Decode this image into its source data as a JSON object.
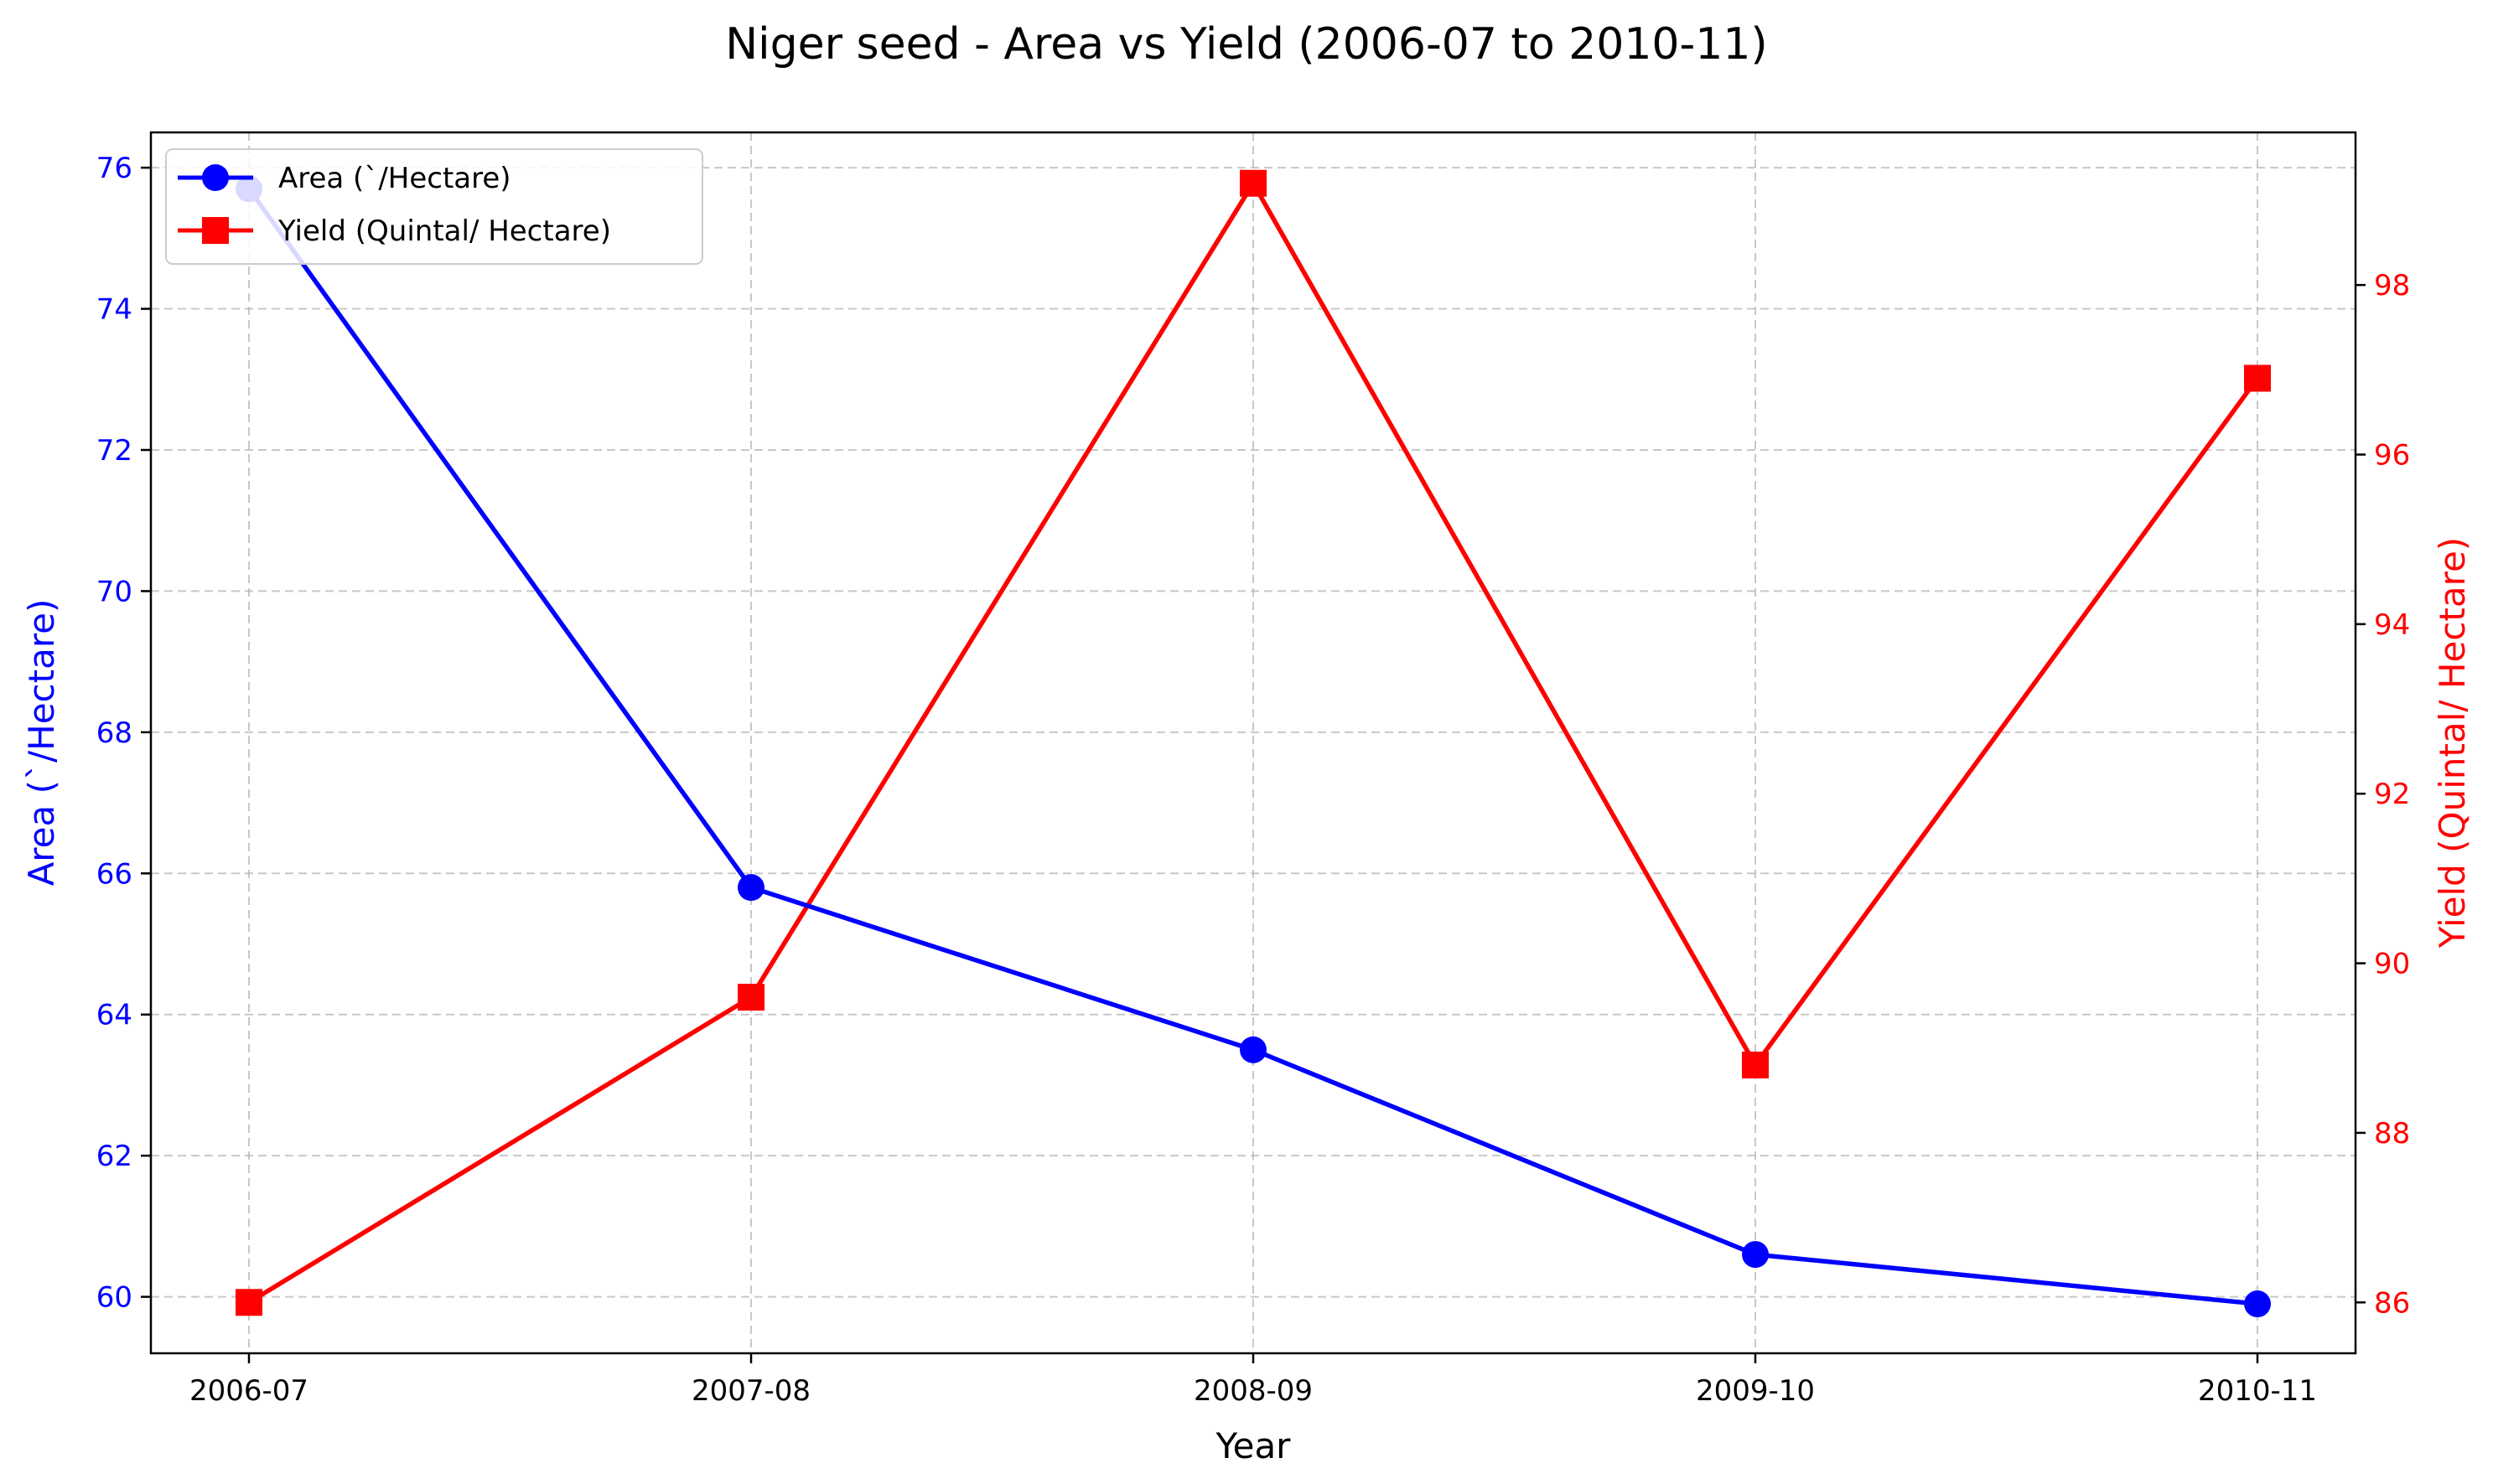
{
  "chart_data": {
    "type": "line",
    "title": "Niger seed - Area vs Yield (2006-07 to 2010-11)",
    "xlabel": "Year",
    "categories": [
      "2006-07",
      "2007-08",
      "2008-09",
      "2009-10",
      "2010-11"
    ],
    "y_left": {
      "label": "Area (`/Hectare)",
      "ylim": [
        59.2,
        76.5
      ],
      "ticks": [
        60,
        62,
        64,
        66,
        68,
        70,
        72,
        74,
        76
      ],
      "color": "#0000ff"
    },
    "y_right": {
      "label": "Yield (Quintal/ Hectare)",
      "ylim": [
        85.4,
        99.8
      ],
      "ticks": [
        86,
        88,
        90,
        92,
        94,
        96,
        98
      ],
      "color": "#ff0000"
    },
    "series": [
      {
        "name": "Area (`/Hectare)",
        "axis": "left",
        "marker": "circle",
        "color": "#0000ff",
        "values": [
          75.7,
          65.8,
          63.5,
          60.6,
          59.9
        ]
      },
      {
        "name": "Yield (Quintal/ Hectare)",
        "axis": "right",
        "marker": "square",
        "color": "#ff0000",
        "values": [
          86.0,
          89.6,
          99.2,
          88.8,
          96.9
        ]
      }
    ],
    "grid": true,
    "legend_position": "top-left"
  }
}
